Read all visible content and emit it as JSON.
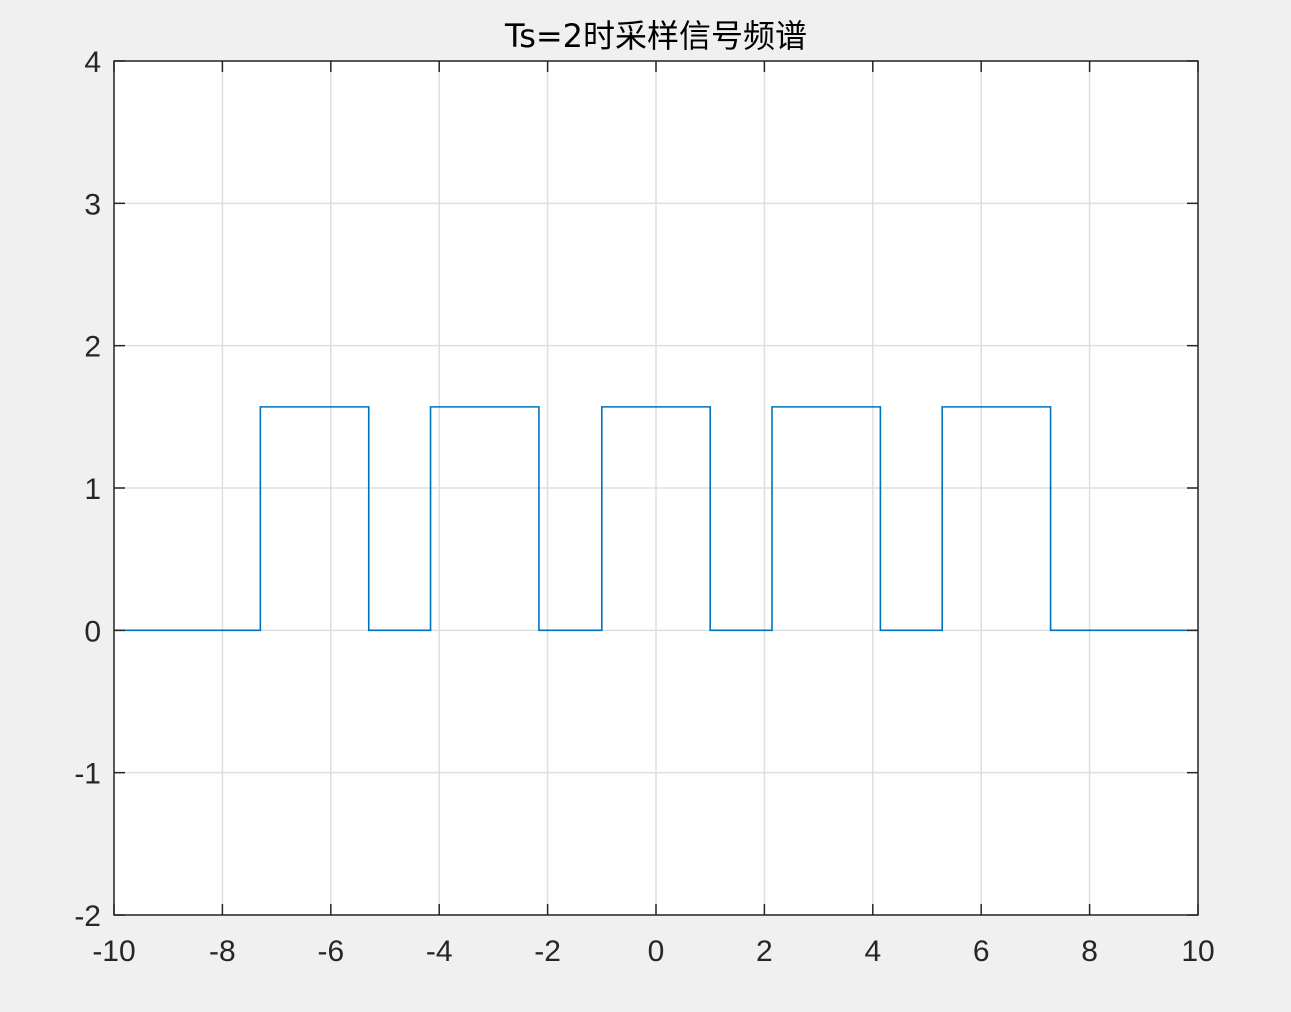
{
  "chart_data": {
    "type": "line",
    "title": "Ts=2时采样信号频谱",
    "xlabel": "",
    "ylabel": "",
    "xlim": [
      -10,
      10
    ],
    "ylim": [
      -2,
      4
    ],
    "xticks": [
      -10,
      -8,
      -6,
      -4,
      -2,
      0,
      2,
      4,
      6,
      8,
      10
    ],
    "yticks": [
      -2,
      -1,
      0,
      1,
      2,
      3,
      4
    ],
    "xtick_labels": [
      "-10",
      "-8",
      "-6",
      "-4",
      "-2",
      "0",
      "2",
      "4",
      "6",
      "8",
      "10"
    ],
    "ytick_labels": [
      "-2",
      "-1",
      "0",
      "1",
      "2",
      "3",
      "4"
    ],
    "grid": true,
    "series": [
      {
        "color": "#0072bd",
        "x": [
          -10,
          -7.3,
          -7.3,
          -5.3,
          -5.3,
          -4.16,
          -4.16,
          -2.16,
          -2.16,
          -1.0,
          -1.0,
          1.0,
          1.0,
          2.14,
          2.14,
          4.14,
          4.14,
          5.28,
          5.28,
          7.28,
          7.28,
          10
        ],
        "y": [
          0,
          0,
          1.57,
          1.57,
          0,
          0,
          1.57,
          1.57,
          0,
          0,
          1.57,
          1.57,
          0,
          0,
          1.57,
          1.57,
          0,
          0,
          1.57,
          1.57,
          0,
          0
        ]
      }
    ]
  }
}
